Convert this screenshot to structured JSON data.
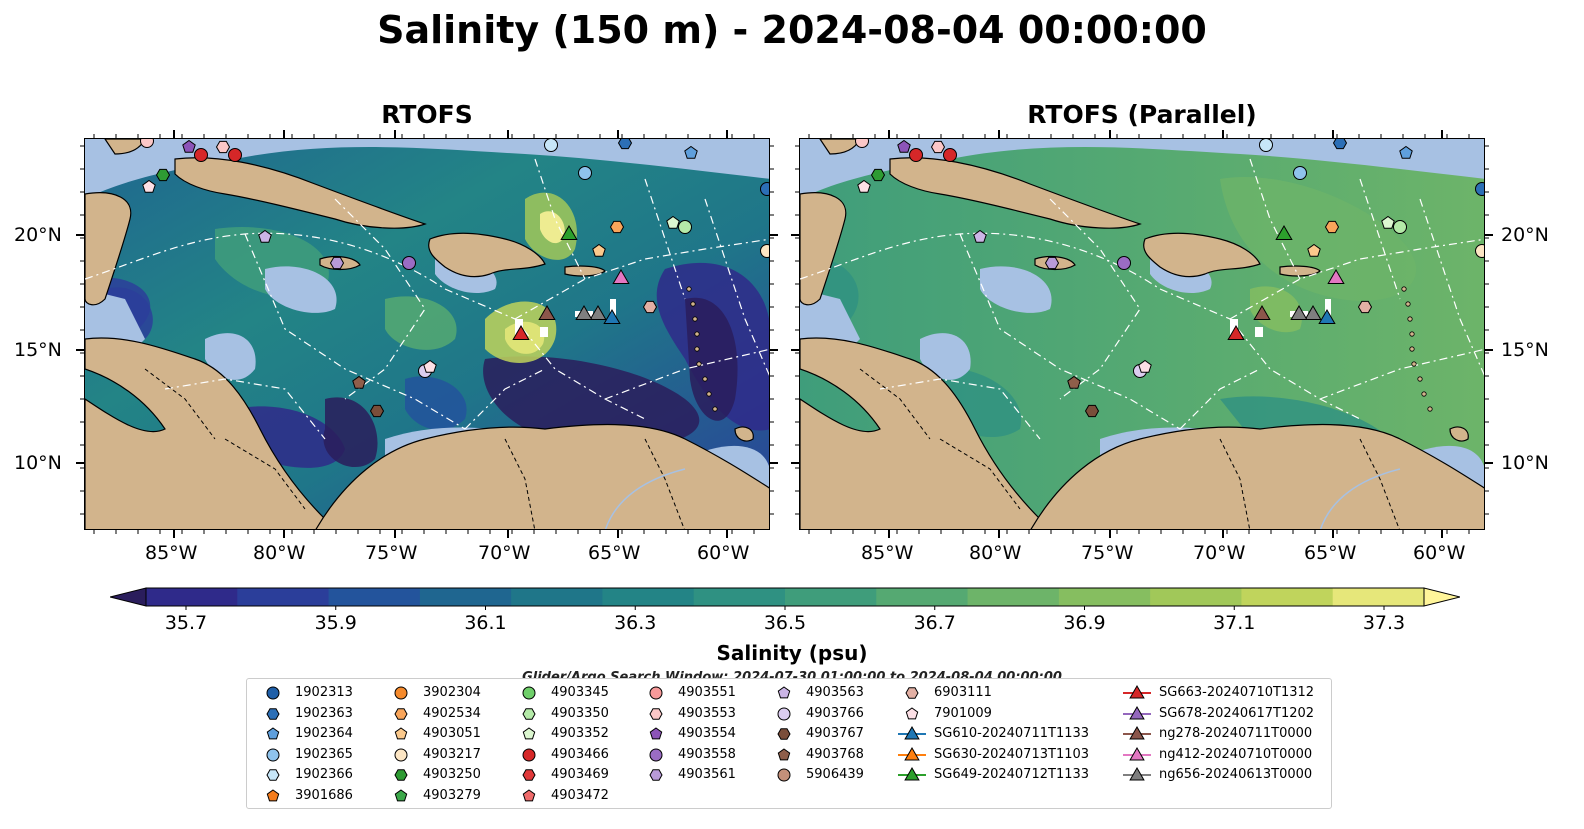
{
  "title": "Salinity (150 m) - 2024-08-04 00:00:00",
  "panels": [
    {
      "title": "RTOFS",
      "variant": "model"
    },
    {
      "title": "RTOFS (Parallel)",
      "variant": "parallel"
    }
  ],
  "lat_labels": [
    "20°N",
    "15°N",
    "10°N"
  ],
  "lon_labels": [
    "85°W",
    "80°W",
    "75°W",
    "70°W",
    "65°W",
    "60°W"
  ],
  "colorbar": {
    "title": "Salinity (psu)",
    "ticks": [
      "35.7",
      "35.9",
      "36.1",
      "36.3",
      "36.5",
      "36.7",
      "36.9",
      "37.1",
      "37.3"
    ],
    "colors": [
      "#2a1d5c",
      "#2f2a8a",
      "#2b3e9a",
      "#23549c",
      "#1f6690",
      "#1f7689",
      "#238486",
      "#2f9182",
      "#3f9d7b",
      "#55a972",
      "#6db469",
      "#86be60",
      "#a1c859",
      "#c0d45c",
      "#e6e77a",
      "#fff59a"
    ]
  },
  "search_window": "Glider/Argo Search Window: 2024-07-30 01:00:00 to 2024-08-04 00:00:00",
  "legend": {
    "columns": [
      [
        {
          "label": "1902313",
          "marker": "circle",
          "color": "#1f5fa8"
        },
        {
          "label": "1902363",
          "marker": "hexagon",
          "color": "#2c6fb6"
        },
        {
          "label": "1902364",
          "marker": "pentagon",
          "color": "#5f9fdc"
        },
        {
          "label": "1902365",
          "marker": "circle",
          "color": "#8fc3ec"
        },
        {
          "label": "1902366",
          "marker": "hexagon",
          "color": "#c7e6f8"
        },
        {
          "label": "3901686",
          "marker": "pentagon",
          "color": "#f47c1c"
        }
      ],
      [
        {
          "label": "3902304",
          "marker": "circle",
          "color": "#f58a2c"
        },
        {
          "label": "4902534",
          "marker": "hexagon",
          "color": "#f9a55a"
        },
        {
          "label": "4903051",
          "marker": "pentagon",
          "color": "#fbc98c"
        },
        {
          "label": "4903217",
          "marker": "circle",
          "color": "#fde6c4"
        },
        {
          "label": "4903250",
          "marker": "hexagon",
          "color": "#2e9b33"
        },
        {
          "label": "4903279",
          "marker": "pentagon",
          "color": "#3ca84a"
        }
      ],
      [
        {
          "label": "4903345",
          "marker": "circle",
          "color": "#6fcf6a"
        },
        {
          "label": "4903350",
          "marker": "hexagon",
          "color": "#b4eaa8"
        },
        {
          "label": "4903352",
          "marker": "pentagon",
          "color": "#dcf7d0"
        },
        {
          "label": "4903466",
          "marker": "circle",
          "color": "#d62728"
        },
        {
          "label": "4903469",
          "marker": "hexagon",
          "color": "#e0393a"
        },
        {
          "label": "4903472",
          "marker": "pentagon",
          "color": "#ef6b6b"
        }
      ],
      [
        {
          "label": "4903551",
          "marker": "circle",
          "color": "#f79a9a"
        },
        {
          "label": "4903553",
          "marker": "hexagon",
          "color": "#fbc7c7"
        },
        {
          "label": "4903554",
          "marker": "pentagon",
          "color": "#8c54b8"
        },
        {
          "label": "4903558",
          "marker": "circle",
          "color": "#9a6cc4"
        },
        {
          "label": "4903561",
          "marker": "hexagon",
          "color": "#b89ad8"
        }
      ],
      [
        {
          "label": "4903563",
          "marker": "pentagon",
          "color": "#cbb5e6"
        },
        {
          "label": "4903766",
          "marker": "circle",
          "color": "#dccdf0"
        },
        {
          "label": "4903767",
          "marker": "hexagon",
          "color": "#7a4e3a"
        },
        {
          "label": "4903768",
          "marker": "pentagon",
          "color": "#8f5e4a"
        },
        {
          "label": "5906439",
          "marker": "circle",
          "color": "#c4907a"
        }
      ],
      [
        {
          "label": "6903111",
          "marker": "hexagon",
          "color": "#e3b0a4"
        },
        {
          "label": "7901009",
          "marker": "pentagon",
          "color": "#fde0e6"
        },
        {
          "label": "SG610-20240711T1133",
          "marker": "triangle-line",
          "color": "#1f77b4"
        },
        {
          "label": "SG630-20240713T1103",
          "marker": "triangle-line",
          "color": "#ff7f0e"
        },
        {
          "label": "SG649-20240712T1133",
          "marker": "triangle-line",
          "color": "#2ca02c"
        }
      ],
      [
        {
          "label": "SG663-20240710T1312",
          "marker": "triangle-line",
          "color": "#d62728"
        },
        {
          "label": "SG678-20240617T1202",
          "marker": "triangle-line",
          "color": "#9467bd"
        },
        {
          "label": "ng278-20240711T0000",
          "marker": "triangle-line",
          "color": "#8c564b"
        },
        {
          "label": "ng412-20240710T0000",
          "marker": "triangle-line",
          "color": "#e377c2"
        },
        {
          "label": "ng656-20240613T0000",
          "marker": "triangle-line",
          "color": "#7f7f7f"
        }
      ]
    ]
  },
  "colors": {
    "land": "#d2b48c",
    "shelf": "#a7c1e3",
    "eez_line": "#ffffff",
    "border_line": "#000000"
  }
}
